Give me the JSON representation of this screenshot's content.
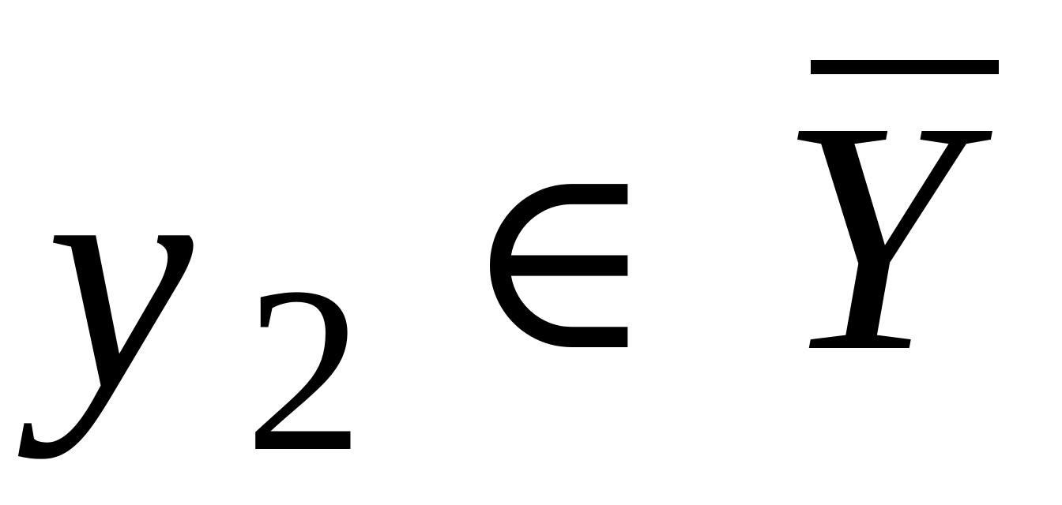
{
  "formula": {
    "variable": "y",
    "subscript": "2",
    "relation": "∈",
    "set_symbol": "Y",
    "set_decoration": "overline"
  }
}
